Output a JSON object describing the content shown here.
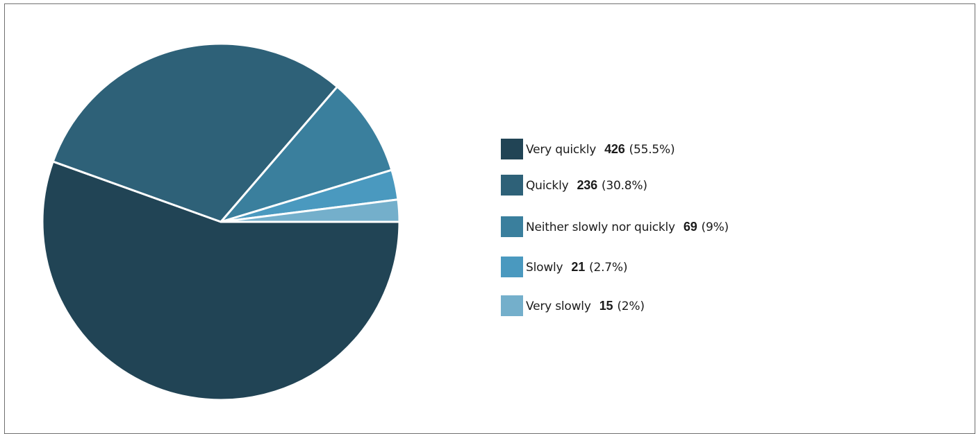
{
  "chart_data": {
    "type": "pie",
    "title": "",
    "slices": [
      {
        "label": "Very quickly",
        "count": "426",
        "pct": "(55.5%)",
        "value": 55.5,
        "color": "#214455"
      },
      {
        "label": "Quickly",
        "count": "236",
        "pct": "(30.8%)",
        "value": 30.8,
        "color": "#2e6178"
      },
      {
        "label": "Neither slowly nor quickly",
        "count": "69",
        "pct": "(9%)",
        "value": 9,
        "color": "#3a7f9d"
      },
      {
        "label": "Slowly",
        "count": "21",
        "pct": "(2.7%)",
        "value": 2.7,
        "color": "#4a99bf"
      },
      {
        "label": "Very slowly",
        "count": "15",
        "pct": "(2%)",
        "value": 2,
        "color": "#74afcb"
      }
    ],
    "legend_position": "right",
    "slice_border_color": "#ffffff"
  }
}
